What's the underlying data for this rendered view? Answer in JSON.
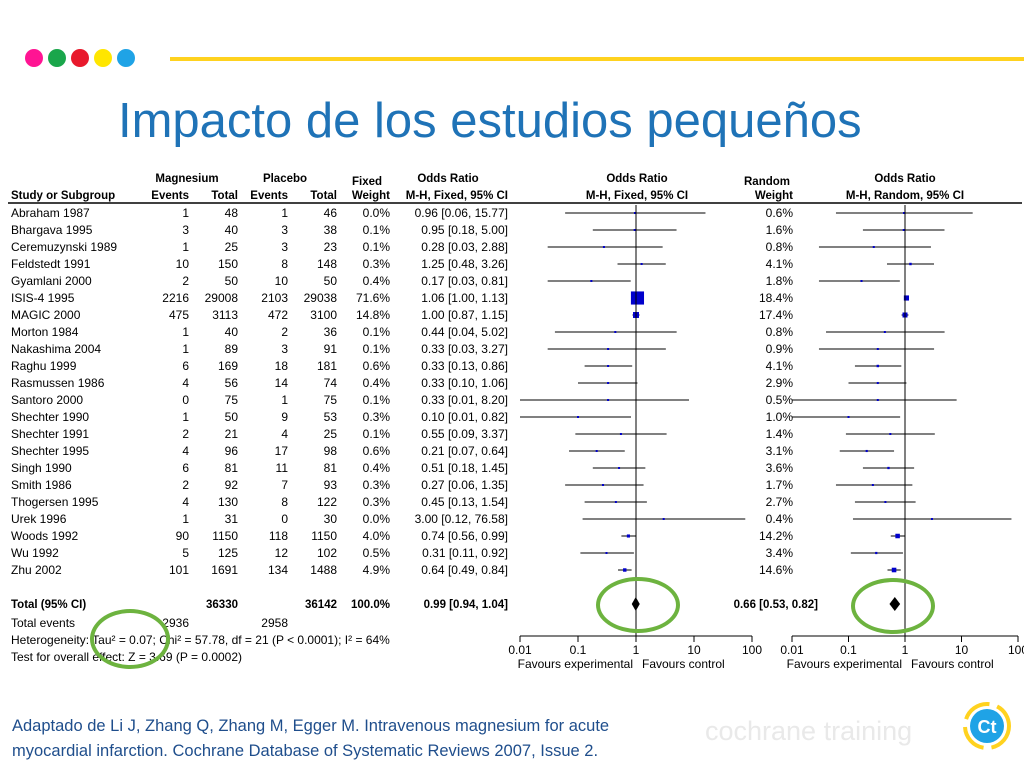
{
  "slide": {
    "title": "Impacto de los estudios pequeños",
    "citation_line1": "Adaptado de  Li J, Zhang Q, Zhang M, Egger M. Intravenous magnesium for acute",
    "citation_line2": "myocardial infarction. Cochrane Database of Systematic Reviews 2007, Issue 2.",
    "brand": "cochrane training",
    "logo_text": "Ct",
    "colors": {
      "title": "#1f73b7",
      "topline": "#ffd21f",
      "circle": "#6db33f",
      "marker": "#0000cc",
      "citation": "#1f4e8c"
    },
    "dots": [
      "#ff1493",
      "#1aa64b",
      "#e8192c",
      "#ffe600",
      "#1fa3e6"
    ]
  },
  "chart_data": {
    "type": "forest",
    "headers": {
      "study": "Study or Subgroup",
      "group1": "Magnesium",
      "group2": "Placebo",
      "events": "Events",
      "total": "Total",
      "fixed_label": "Fixed",
      "weight": "Weight",
      "or_header": "Odds Ratio",
      "or_fixed_method": "M-H, Fixed, 95% CI",
      "random_label": "Random",
      "or_random_method": "M-H, Random, 95% CI"
    },
    "studies": [
      {
        "name": "Abraham 1987",
        "e1": "1",
        "t1": "48",
        "e2": "1",
        "t2": "46",
        "w_fixed": "0.0%",
        "ci_fixed": "0.96 [0.06, 15.77]",
        "w_random": "0.6%",
        "or": 0.96,
        "lo": 0.06,
        "hi": 15.77
      },
      {
        "name": "Bhargava 1995",
        "e1": "3",
        "t1": "40",
        "e2": "3",
        "t2": "38",
        "w_fixed": "0.1%",
        "ci_fixed": "0.95 [0.18, 5.00]",
        "w_random": "1.6%",
        "or": 0.95,
        "lo": 0.18,
        "hi": 5.0
      },
      {
        "name": "Ceremuzynski 1989",
        "e1": "1",
        "t1": "25",
        "e2": "3",
        "t2": "23",
        "w_fixed": "0.1%",
        "ci_fixed": "0.28 [0.03, 2.88]",
        "w_random": "0.8%",
        "or": 0.28,
        "lo": 0.03,
        "hi": 2.88
      },
      {
        "name": "Feldstedt 1991",
        "e1": "10",
        "t1": "150",
        "e2": "8",
        "t2": "148",
        "w_fixed": "0.3%",
        "ci_fixed": "1.25 [0.48, 3.26]",
        "w_random": "4.1%",
        "or": 1.25,
        "lo": 0.48,
        "hi": 3.26
      },
      {
        "name": "Gyamlani 2000",
        "e1": "2",
        "t1": "50",
        "e2": "10",
        "t2": "50",
        "w_fixed": "0.4%",
        "ci_fixed": "0.17 [0.03, 0.81]",
        "w_random": "1.8%",
        "or": 0.17,
        "lo": 0.03,
        "hi": 0.81
      },
      {
        "name": "ISIS-4 1995",
        "e1": "2216",
        "t1": "29008",
        "e2": "2103",
        "t2": "29038",
        "w_fixed": "71.6%",
        "ci_fixed": "1.06 [1.00, 1.13]",
        "w_random": "18.4%",
        "or": 1.06,
        "lo": 1.0,
        "hi": 1.13
      },
      {
        "name": "MAGIC 2000",
        "e1": "475",
        "t1": "3113",
        "e2": "472",
        "t2": "3100",
        "w_fixed": "14.8%",
        "ci_fixed": "1.00 [0.87, 1.15]",
        "w_random": "17.4%",
        "or": 1.0,
        "lo": 0.87,
        "hi": 1.15
      },
      {
        "name": "Morton 1984",
        "e1": "1",
        "t1": "40",
        "e2": "2",
        "t2": "36",
        "w_fixed": "0.1%",
        "ci_fixed": "0.44 [0.04, 5.02]",
        "w_random": "0.8%",
        "or": 0.44,
        "lo": 0.04,
        "hi": 5.02
      },
      {
        "name": "Nakashima 2004",
        "e1": "1",
        "t1": "89",
        "e2": "3",
        "t2": "91",
        "w_fixed": "0.1%",
        "ci_fixed": "0.33 [0.03, 3.27]",
        "w_random": "0.9%",
        "or": 0.33,
        "lo": 0.03,
        "hi": 3.27
      },
      {
        "name": "Raghu 1999",
        "e1": "6",
        "t1": "169",
        "e2": "18",
        "t2": "181",
        "w_fixed": "0.6%",
        "ci_fixed": "0.33 [0.13, 0.86]",
        "w_random": "4.1%",
        "or": 0.33,
        "lo": 0.13,
        "hi": 0.86
      },
      {
        "name": "Rasmussen 1986",
        "e1": "4",
        "t1": "56",
        "e2": "14",
        "t2": "74",
        "w_fixed": "0.4%",
        "ci_fixed": "0.33 [0.10, 1.06]",
        "w_random": "2.9%",
        "or": 0.33,
        "lo": 0.1,
        "hi": 1.06
      },
      {
        "name": "Santoro 2000",
        "e1": "0",
        "t1": "75",
        "e2": "1",
        "t2": "75",
        "w_fixed": "0.1%",
        "ci_fixed": "0.33 [0.01, 8.20]",
        "w_random": "0.5%",
        "or": 0.33,
        "lo": 0.01,
        "hi": 8.2
      },
      {
        "name": "Shechter 1990",
        "e1": "1",
        "t1": "50",
        "e2": "9",
        "t2": "53",
        "w_fixed": "0.3%",
        "ci_fixed": "0.10 [0.01, 0.82]",
        "w_random": "1.0%",
        "or": 0.1,
        "lo": 0.01,
        "hi": 0.82
      },
      {
        "name": "Shechter 1991",
        "e1": "2",
        "t1": "21",
        "e2": "4",
        "t2": "25",
        "w_fixed": "0.1%",
        "ci_fixed": "0.55 [0.09, 3.37]",
        "w_random": "1.4%",
        "or": 0.55,
        "lo": 0.09,
        "hi": 3.37
      },
      {
        "name": "Shechter 1995",
        "e1": "4",
        "t1": "96",
        "e2": "17",
        "t2": "98",
        "w_fixed": "0.6%",
        "ci_fixed": "0.21 [0.07, 0.64]",
        "w_random": "3.1%",
        "or": 0.21,
        "lo": 0.07,
        "hi": 0.64
      },
      {
        "name": "Singh 1990",
        "e1": "6",
        "t1": "81",
        "e2": "11",
        "t2": "81",
        "w_fixed": "0.4%",
        "ci_fixed": "0.51 [0.18, 1.45]",
        "w_random": "3.6%",
        "or": 0.51,
        "lo": 0.18,
        "hi": 1.45
      },
      {
        "name": "Smith 1986",
        "e1": "2",
        "t1": "92",
        "e2": "7",
        "t2": "93",
        "w_fixed": "0.3%",
        "ci_fixed": "0.27 [0.06, 1.35]",
        "w_random": "1.7%",
        "or": 0.27,
        "lo": 0.06,
        "hi": 1.35
      },
      {
        "name": "Thogersen 1995",
        "e1": "4",
        "t1": "130",
        "e2": "8",
        "t2": "122",
        "w_fixed": "0.3%",
        "ci_fixed": "0.45 [0.13, 1.54]",
        "w_random": "2.7%",
        "or": 0.45,
        "lo": 0.13,
        "hi": 1.54
      },
      {
        "name": "Urek 1996",
        "e1": "1",
        "t1": "31",
        "e2": "0",
        "t2": "30",
        "w_fixed": "0.0%",
        "ci_fixed": "3.00 [0.12, 76.58]",
        "w_random": "0.4%",
        "or": 3.0,
        "lo": 0.12,
        "hi": 76.58
      },
      {
        "name": "Woods 1992",
        "e1": "90",
        "t1": "1150",
        "e2": "118",
        "t2": "1150",
        "w_fixed": "4.0%",
        "ci_fixed": "0.74 [0.56, 0.99]",
        "w_random": "14.2%",
        "or": 0.74,
        "lo": 0.56,
        "hi": 0.99
      },
      {
        "name": "Wu 1992",
        "e1": "5",
        "t1": "125",
        "e2": "12",
        "t2": "102",
        "w_fixed": "0.5%",
        "ci_fixed": "0.31 [0.11, 0.92]",
        "w_random": "3.4%",
        "or": 0.31,
        "lo": 0.11,
        "hi": 0.92
      },
      {
        "name": "Zhu 2002",
        "e1": "101",
        "t1": "1691",
        "e2": "134",
        "t2": "1488",
        "w_fixed": "4.9%",
        "ci_fixed": "0.64 [0.49, 0.84]",
        "w_random": "14.6%",
        "or": 0.64,
        "lo": 0.49,
        "hi": 0.84
      }
    ],
    "total": {
      "label": "Total (95% CI)",
      "t1": "36330",
      "t2": "36142",
      "w_fixed": "100.0%",
      "ci_fixed": "0.99 [0.94, 1.04]",
      "ci_random": "0.66 [0.53, 0.82]",
      "or_fixed": 0.99,
      "lo_fixed": 0.94,
      "hi_fixed": 1.04,
      "or_random": 0.66,
      "lo_random": 0.53,
      "hi_random": 0.82
    },
    "total_events": {
      "label": "Total events",
      "e1": "2936",
      "e2": "2958"
    },
    "heterogeneity": "Heterogeneity: Tau² = 0.07; Chi² = 57.78, df = 21 (P < 0.0001); I² = 64%",
    "overall_effect": "Test for overall effect: Z = 3.69 (P = 0.0002)",
    "x_scale": "log",
    "xlim": [
      0.01,
      100
    ],
    "xticks": [
      "0.01",
      "0.1",
      "1",
      "10",
      "100"
    ],
    "favours_left": "Favours experimental",
    "favours_right": "Favours control"
  }
}
